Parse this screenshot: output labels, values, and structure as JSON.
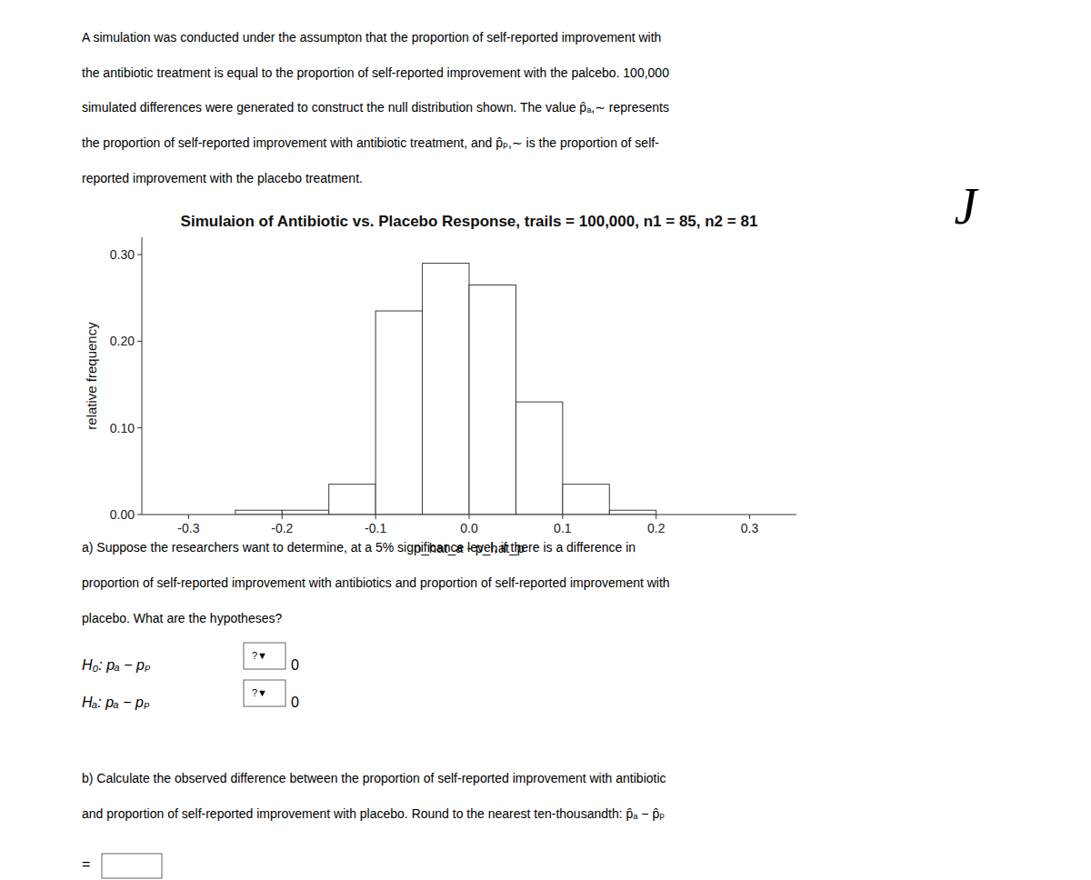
{
  "chart_data": {
    "type": "histogram",
    "title": "Simulaion of Antibiotic vs. Placebo Response, trails = 100,000, n1 = 85, n2 = 81",
    "x_label": "p_hat_a - p_hat_p",
    "y_label": "relative frequency",
    "bins": [
      -0.25,
      -0.2,
      -0.15,
      -0.1,
      -0.05,
      0.0,
      0.05,
      0.1,
      0.15,
      0.2,
      0.25
    ],
    "values": [
      0.005,
      0.005,
      0.035,
      0.235,
      0.29,
      0.265,
      0.13,
      0.035,
      0.005,
      0.0
    ],
    "color": "#ffffff",
    "xlim": [
      -0.35,
      0.35
    ],
    "ylim": [
      0.0,
      0.32
    ],
    "xticks": [
      -0.3,
      -0.2,
      -0.1,
      {
        "value": 0.0,
        "label": "0.0"
      },
      0.1,
      0.2,
      0.3
    ],
    "yticks": [
      {
        "value": 0.0,
        "label": "0.00"
      },
      {
        "value": 0.1,
        "label": "0.10"
      },
      {
        "value": 0.2,
        "label": "0.20"
      },
      {
        "value": 0.3,
        "label": "0.30"
      }
    ],
    "grid": false,
    "annotations": [
      "A simulation was conducted under the assumpton that the proportion of self-reported improvement with",
      "the antibiotic treatment is equal to the proportion of self-reported improvement with the palcebo. 100,000",
      "simulated differences were generated to construct the null distribution shown. The value p̂ₐ,∼  represents",
      "the proportion of self-reported improvement with antibiotic treatment, and p̂ₚ,∼  is the proportion of self-",
      "reported improvement with the placebo treatment.",
      "J",
      "a) Suppose the researchers want to determine, at a 5% significance level, if there is a difference in",
      "proportion of self-reported improvement with antibiotics and proportion of self-reported improvement with",
      "placebo. What are the hypotheses?",
      "H₀: pₐ − pₚ",
      "?▼",
      "0",
      "Hₐ: pₐ − pₚ",
      "?▼",
      "0",
      "b) Calculate the observed difference between the proportion of self-reported improvement with antibiotic",
      "and proportion of self-reported improvement with placebo. Round to the nearest ten-thousandth: p̂ₐ − p̂ₚ",
      "="
    ]
  }
}
